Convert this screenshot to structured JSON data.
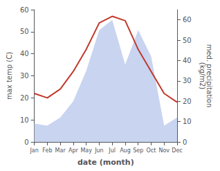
{
  "chart_data": {
    "type": "line",
    "categories": [
      "Jan",
      "Feb",
      "Mar",
      "Apr",
      "May",
      "Jun",
      "Jul",
      "Aug",
      "Sep",
      "Oct",
      "Nov",
      "Dec"
    ],
    "xlabel": "date (month)",
    "ylabel": "max temp (C)",
    "y2label": "med. precipitation\n(kg/m2)",
    "series": [
      {
        "type": "area",
        "axis": "y2",
        "color": "#c8d4f0",
        "values": [
          9,
          8,
          12,
          20,
          35,
          55,
          60,
          38,
          55,
          42,
          8,
          12
        ]
      },
      {
        "type": "line",
        "color": "#c0392b",
        "values": [
          22,
          20,
          24,
          32,
          42,
          54,
          57,
          55,
          42,
          32,
          22,
          18
        ]
      }
    ],
    "ylim": [
      0,
      60
    ],
    "yticks": [
      0,
      10,
      20,
      30,
      40,
      50,
      60
    ],
    "y2lim": [
      0,
      65
    ],
    "y2ticks": [
      0,
      10,
      20,
      30,
      40,
      50,
      60
    ],
    "grid": false
  }
}
